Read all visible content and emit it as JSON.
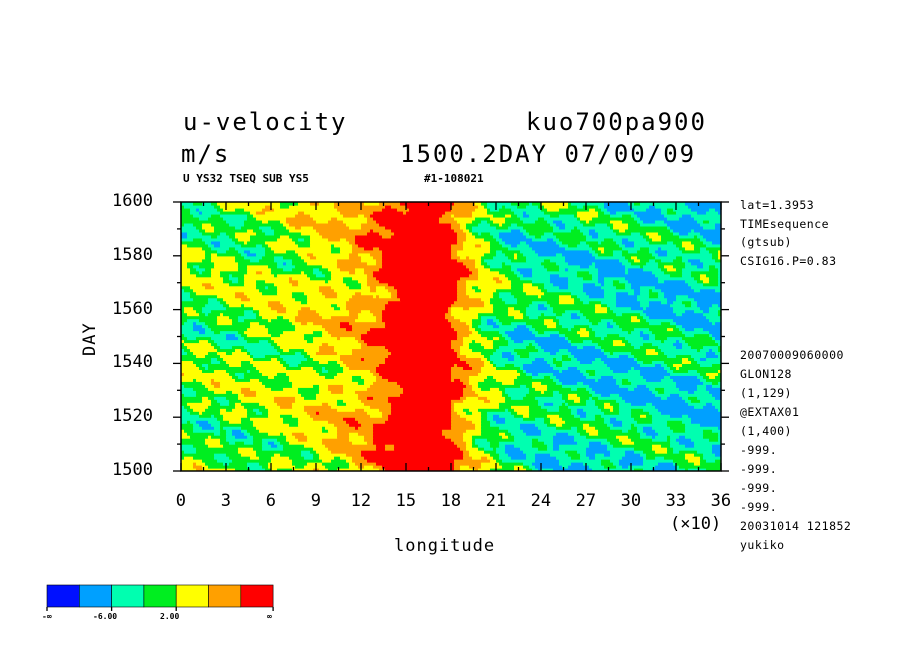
{
  "header": {
    "variable": "u-velocity",
    "units": "m/s",
    "experiment": "kuo700pa900",
    "time_label": "1500.2DAY 07/00/09",
    "subtitle_left": "U YS32 TSEQ SUB YS5",
    "subtitle_right": "#1-108021"
  },
  "side_info": {
    "top": [
      "lat=1.3953",
      "TIMEsequence",
      "(gtsub)",
      "CSIG16.P=0.83"
    ],
    "bottom": [
      "20070009060000",
      "GLON128",
      "(1,129)",
      "@EXTAX01",
      "(1,400)",
      "-999.",
      "-999.",
      "-999.",
      "-999.",
      "20031014 121852",
      "yukiko"
    ]
  },
  "colorbar": {
    "colors": [
      "#0010ff",
      "#00a0ff",
      "#00ffb0",
      "#00ee20",
      "#ffff00",
      "#ffa000",
      "#ff0000"
    ],
    "labels": [
      "-∞",
      "-6.00",
      "2.00",
      "∞"
    ]
  },
  "chart_data": {
    "type": "heatmap",
    "title": "u-velocity",
    "units": "m/s",
    "xlabel": "longitude",
    "ylabel": "DAY",
    "x_ticks": [
      "0",
      "3",
      "6",
      "9",
      "12",
      "15",
      "18",
      "21",
      "24",
      "27",
      "30",
      "33",
      "36"
    ],
    "x_multiplier": "(×10)",
    "y_ticks": [
      "1500",
      "1520",
      "1540",
      "1560",
      "1580",
      "1600"
    ],
    "xlim": [
      0,
      36
    ],
    "ylim": [
      1500,
      1600
    ],
    "color_levels": [
      "-∞",
      "-6.00",
      "2.00",
      "∞"
    ],
    "pattern": {
      "max_band_longitude": [
        15.5,
        17.5
      ],
      "description_values": "strong positive u (red) concentrated near longitude 150–180, moderate positive (yellow/orange) 90–180, weaker negative (cyan/blue) east of 180"
    }
  }
}
